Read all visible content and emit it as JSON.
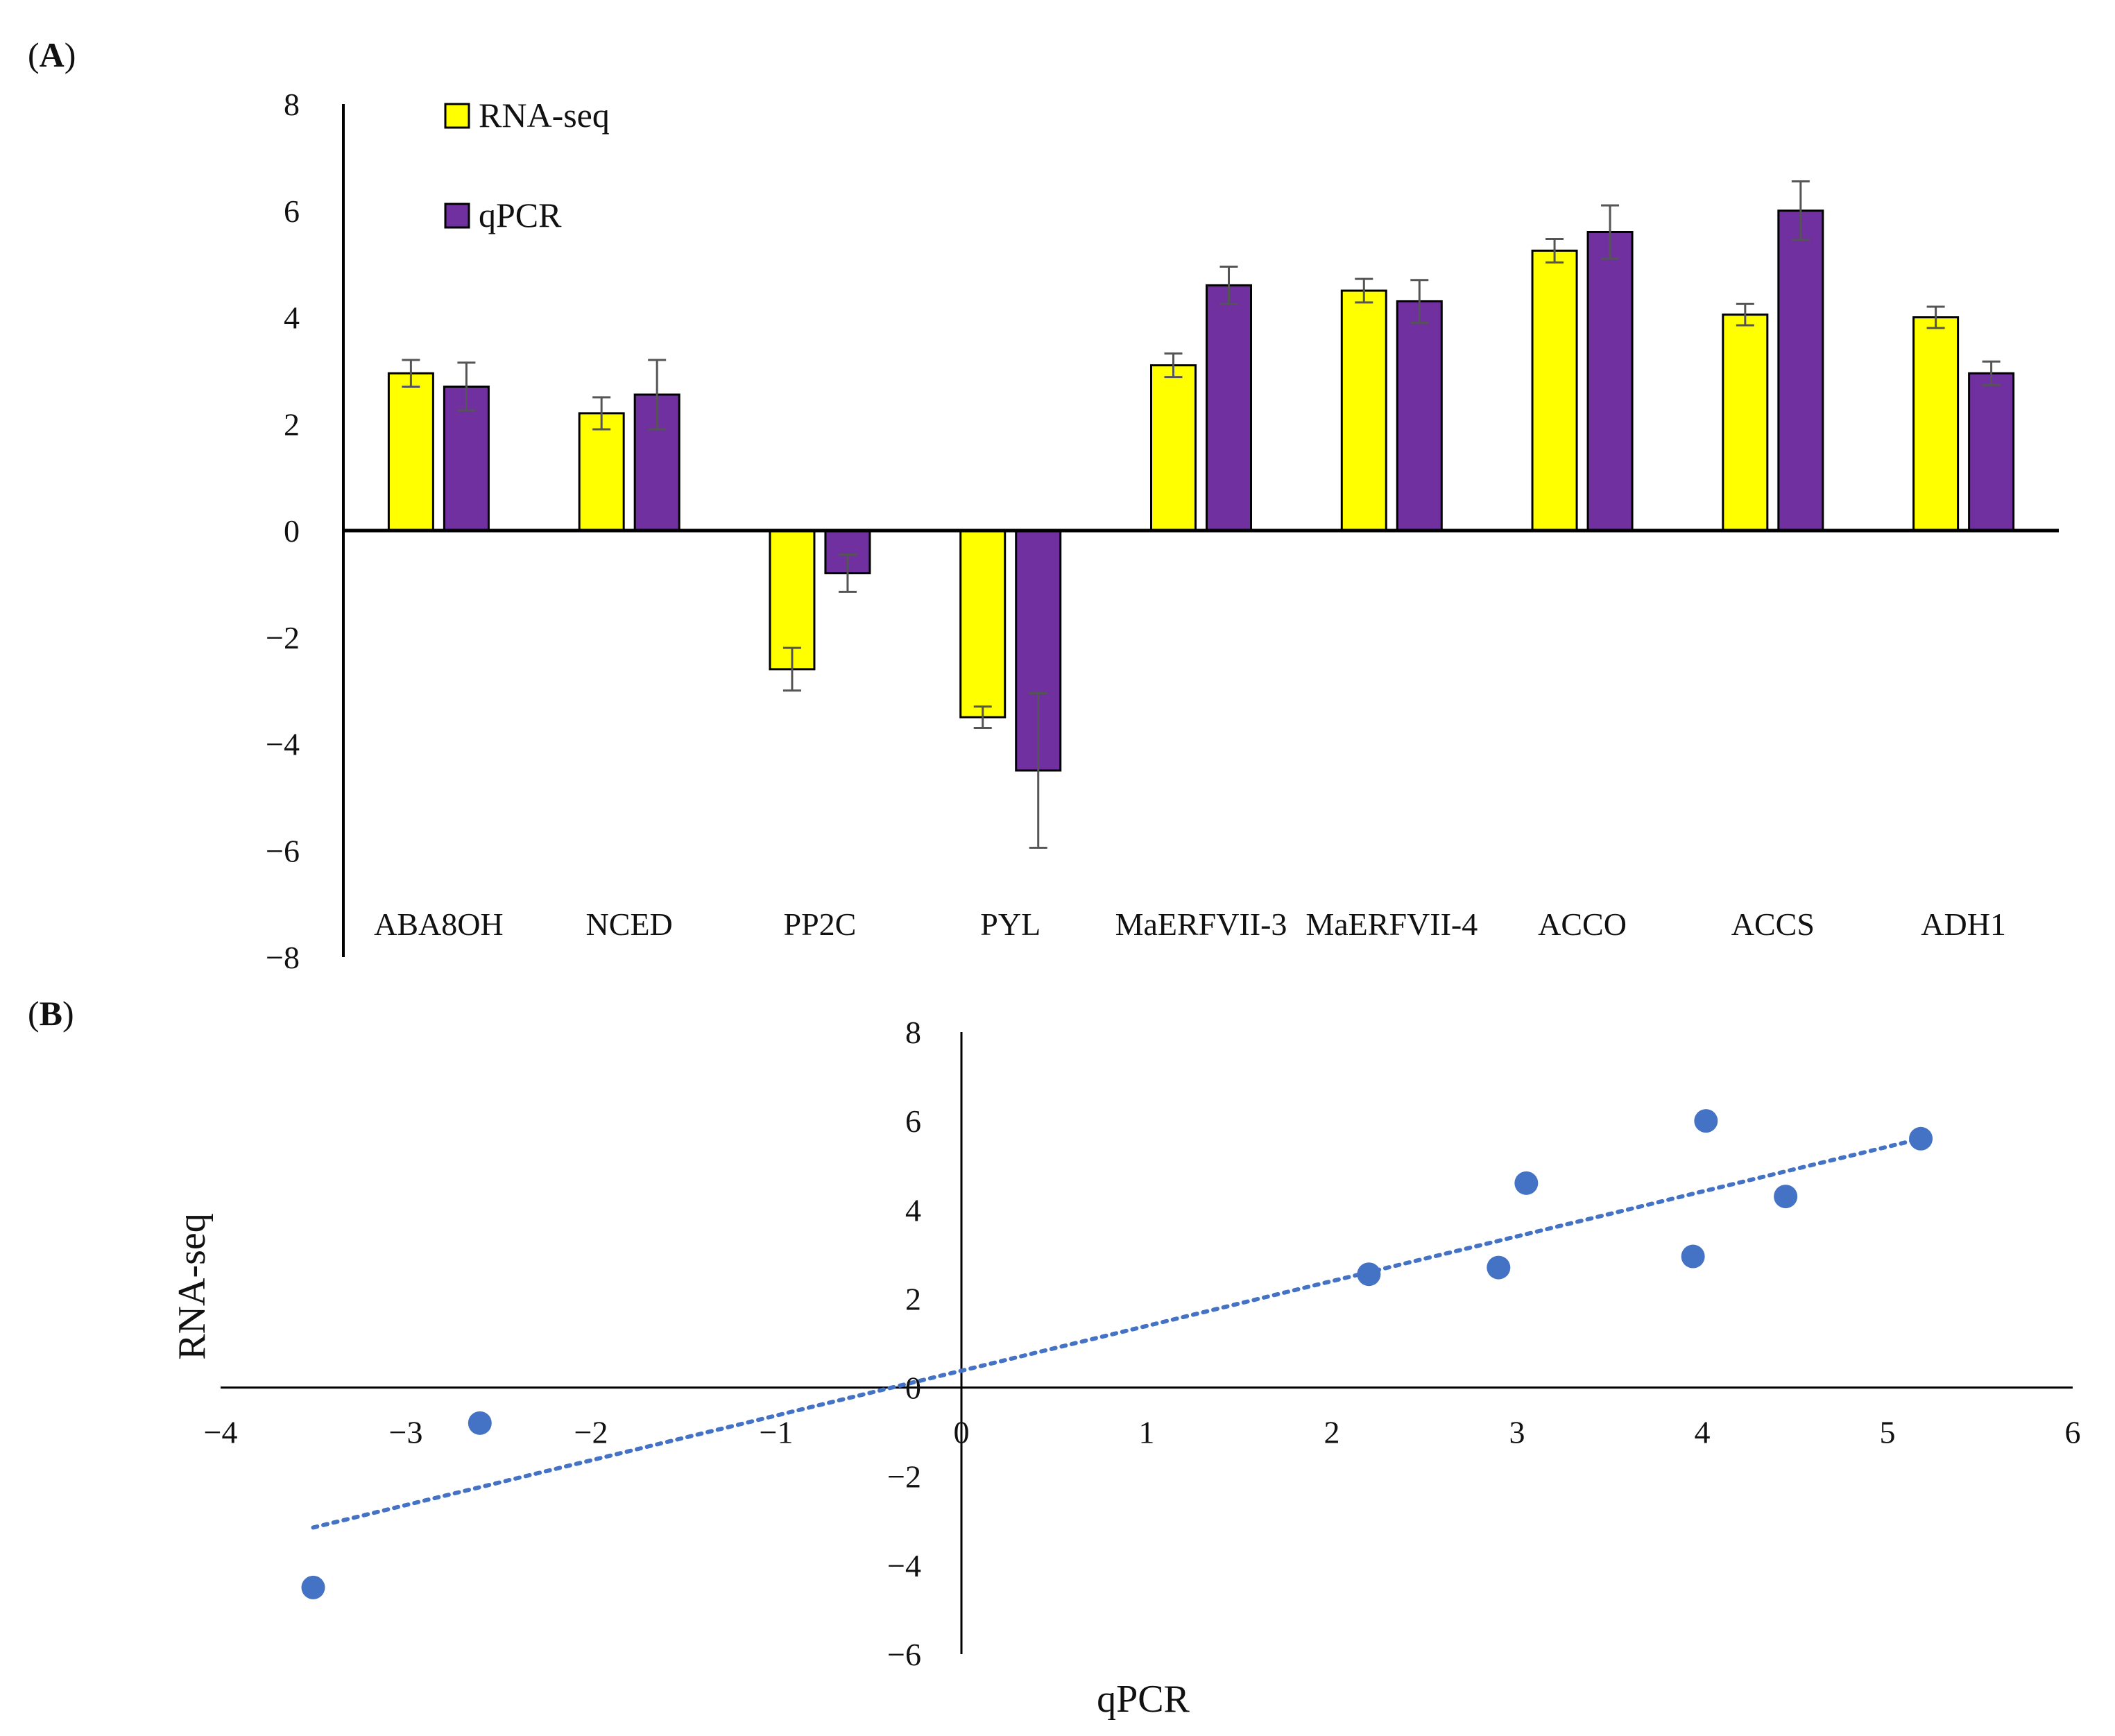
{
  "figure": {
    "panel_a_label_open": "(",
    "panel_a_label_letter": "A",
    "panel_a_label_close": ")",
    "panel_b_label_open": "(",
    "panel_b_label_letter": "B",
    "panel_b_label_close": ")"
  },
  "chart_data": [
    {
      "panel": "A",
      "type": "bar",
      "title": "",
      "xlabel": "",
      "ylabel": "",
      "ylim": [
        -8,
        8
      ],
      "yticks": [
        8,
        6,
        4,
        2,
        0,
        -2,
        -4,
        -6,
        -8
      ],
      "ytick_labels": [
        "8",
        "6",
        "4",
        "2",
        "0",
        "−2",
        "−4",
        "−6",
        "−8"
      ],
      "categories": [
        "ABA8OH",
        "NCED",
        "PP2C",
        "PYL",
        "MaERFVII-3",
        "MaERFVII-4",
        "ACCO",
        "ACCS",
        "ADH1"
      ],
      "series": [
        {
          "name": "RNA-seq",
          "color": "#ffff00",
          "values": [
            2.95,
            2.2,
            -2.6,
            -3.5,
            3.1,
            4.5,
            5.25,
            4.05,
            4.0
          ],
          "errors": [
            0.25,
            0.3,
            0.4,
            0.2,
            0.22,
            0.22,
            0.22,
            0.2,
            0.2
          ]
        },
        {
          "name": "qPCR",
          "color": "#7030a0",
          "values": [
            2.7,
            2.55,
            -0.8,
            -4.5,
            4.6,
            4.3,
            5.6,
            6.0,
            2.95
          ],
          "errors": [
            0.45,
            0.65,
            0.35,
            1.45,
            0.35,
            0.4,
            0.5,
            0.55,
            0.22
          ]
        }
      ],
      "legend": [
        "RNA-seq",
        "qPCR"
      ],
      "legend_position": "top-left",
      "grid": false
    },
    {
      "panel": "B",
      "type": "scatter",
      "title": "",
      "xlabel": "qPCR",
      "ylabel": "RNA-seq",
      "xlim": [
        -4,
        6
      ],
      "ylim": [
        -6,
        8
      ],
      "xticks": [
        -4,
        -3,
        -2,
        -1,
        0,
        1,
        2,
        3,
        4,
        5,
        6
      ],
      "xtick_labels": [
        "−4",
        "−3",
        "−2",
        "−1",
        "0",
        "1",
        "2",
        "3",
        "4",
        "5",
        "6"
      ],
      "yticks": [
        8,
        6,
        4,
        2,
        0,
        -2,
        -4,
        -6
      ],
      "ytick_labels": [
        "8",
        "6",
        "4",
        "2",
        "0",
        "−2",
        "−4",
        "−6"
      ],
      "point_color": "#4472c4",
      "points": [
        {
          "x": 2.2,
          "y": 2.55
        },
        {
          "x": 2.9,
          "y": 2.7
        },
        {
          "x": 3.05,
          "y": 4.6
        },
        {
          "x": 3.95,
          "y": 2.95
        },
        {
          "x": 4.02,
          "y": 6.0
        },
        {
          "x": 4.45,
          "y": 4.3
        },
        {
          "x": 5.18,
          "y": 5.6
        },
        {
          "x": -2.6,
          "y": -0.8
        },
        {
          "x": -3.5,
          "y": -4.5
        }
      ],
      "trendline": {
        "style": "dotted",
        "color": "#4472c4",
        "x0": -3.5,
        "y0": -3.15,
        "x1": 5.18,
        "y1": 5.6
      },
      "grid": false
    }
  ]
}
